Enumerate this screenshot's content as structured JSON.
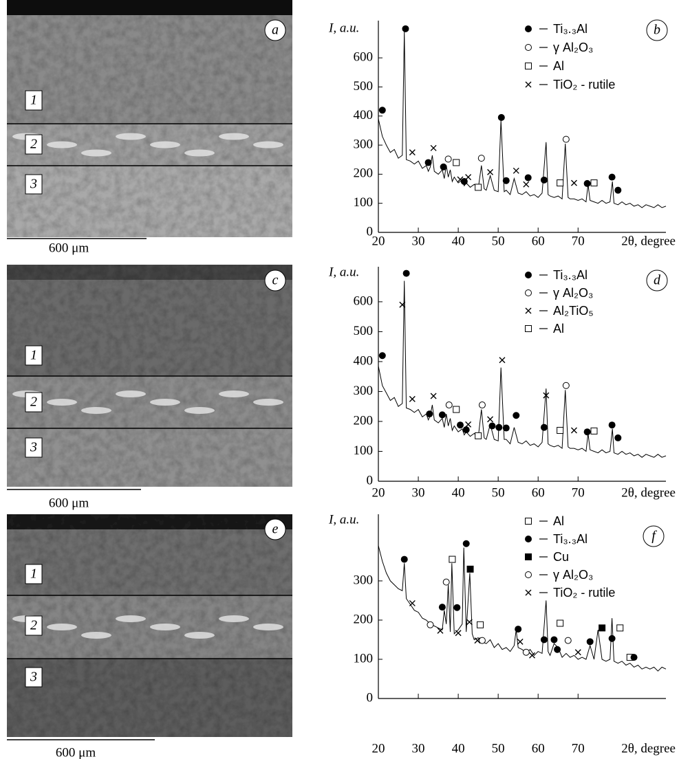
{
  "micrographs": [
    {
      "panel": "a",
      "layers": [
        "1",
        "2",
        "3"
      ],
      "scale": "600 μm"
    },
    {
      "panel": "c",
      "layers": [
        "1",
        "2",
        "3"
      ],
      "scale": "600 μm"
    },
    {
      "panel": "e",
      "layers": [
        "1",
        "2",
        "3"
      ],
      "scale": "600 μm"
    }
  ],
  "chart_data": [
    {
      "type": "line",
      "panel": "b",
      "y_label": "I, a.u.",
      "x_label": "2θ, degree",
      "color": "#000000",
      "xlim": [
        20,
        92
      ],
      "xticks": [
        20,
        30,
        40,
        50,
        60,
        70
      ],
      "ylim": [
        0,
        728
      ],
      "yticks": [
        0,
        100,
        200,
        300,
        400,
        500,
        600
      ],
      "x": [
        20,
        21,
        22,
        23,
        24,
        25,
        26,
        26.5,
        27,
        28,
        29,
        30,
        31,
        32,
        32.5,
        33,
        33.5,
        34,
        35,
        36,
        36.5,
        37,
        37.5,
        38,
        38.5,
        39,
        40,
        41,
        41.5,
        42,
        43,
        44,
        45,
        45.8,
        46.5,
        47,
        48,
        49,
        50,
        50.7,
        51.5,
        52,
        53,
        54,
        55,
        56,
        57,
        58,
        59,
        60,
        61,
        62,
        62.5,
        63,
        64,
        65,
        66,
        66.8,
        67.5,
        68,
        69,
        70,
        71,
        72,
        72.5,
        73,
        74,
        75,
        76,
        77,
        78,
        78.6,
        79,
        80,
        81,
        82,
        83,
        84,
        85,
        86,
        87,
        88,
        89,
        90,
        91,
        92
      ],
      "values": [
        390,
        330,
        300,
        275,
        285,
        255,
        265,
        690,
        250,
        245,
        235,
        245,
        220,
        230,
        210,
        225,
        265,
        210,
        200,
        215,
        185,
        230,
        190,
        215,
        175,
        190,
        170,
        180,
        160,
        170,
        155,
        165,
        150,
        230,
        150,
        145,
        195,
        145,
        140,
        385,
        140,
        145,
        130,
        185,
        135,
        130,
        140,
        125,
        130,
        120,
        135,
        310,
        130,
        125,
        120,
        125,
        115,
        305,
        120,
        115,
        115,
        110,
        115,
        105,
        165,
        110,
        105,
        100,
        110,
        100,
        105,
        175,
        100,
        95,
        105,
        95,
        100,
        90,
        95,
        85,
        95,
        90,
        85,
        95,
        85,
        90
      ],
      "markers": [
        {
          "name": "Ti₃.₃Al",
          "marker": "filled-circle",
          "x": [
            21,
            26.8,
            32.5,
            36.3,
            41.5,
            50.8,
            52,
            57.5,
            61.5,
            72.3,
            78.5,
            80
          ],
          "values": [
            420,
            700,
            240,
            225,
            175,
            395,
            178,
            188,
            180,
            168,
            190,
            145
          ]
        },
        {
          "name": "γ Al₂O₃",
          "marker": "open-circle",
          "x": [
            37.5,
            45.8,
            67
          ],
          "values": [
            252,
            255,
            320
          ]
        },
        {
          "name": "Al",
          "marker": "open-square",
          "x": [
            39.5,
            45,
            65.5,
            74
          ],
          "values": [
            240,
            155,
            170,
            170
          ]
        },
        {
          "name": "TiO₂ - rutile",
          "marker": "cross",
          "x": [
            28.5,
            33.8,
            40.5,
            42.5,
            48,
            54.5,
            57,
            69
          ],
          "values": [
            275,
            290,
            182,
            190,
            207,
            212,
            165,
            170
          ]
        }
      ]
    },
    {
      "type": "line",
      "panel": "d",
      "y_label": "I, a.u.",
      "x_label": "2θ, degree",
      "color": "#000000",
      "xlim": [
        20,
        92
      ],
      "xticks": [
        20,
        30,
        40,
        50,
        60,
        70
      ],
      "ylim": [
        0,
        717
      ],
      "yticks": [
        0,
        100,
        200,
        300,
        400,
        500,
        600
      ],
      "x": [
        20,
        21,
        22,
        23,
        24,
        25,
        26,
        26.5,
        27,
        28,
        29,
        30,
        31,
        32,
        32.5,
        33,
        33.5,
        34,
        35,
        36,
        36.5,
        37,
        37.5,
        38,
        38.5,
        39,
        40,
        41,
        41.5,
        42,
        43,
        44,
        45,
        45.8,
        46.5,
        47,
        48,
        49,
        50,
        50.7,
        51.5,
        52,
        53,
        54,
        55,
        56,
        57,
        58,
        59,
        60,
        61,
        62,
        62.5,
        63,
        64,
        65,
        66,
        66.8,
        67.5,
        68,
        69,
        70,
        71,
        72,
        72.5,
        73,
        74,
        75,
        76,
        77,
        78,
        78.6,
        79,
        80,
        81,
        82,
        83,
        84,
        85,
        86,
        87,
        88,
        89,
        90,
        91,
        92
      ],
      "values": [
        385,
        320,
        295,
        270,
        280,
        250,
        260,
        670,
        245,
        240,
        230,
        240,
        215,
        225,
        205,
        220,
        255,
        205,
        195,
        210,
        180,
        225,
        185,
        210,
        170,
        185,
        165,
        175,
        155,
        165,
        150,
        160,
        145,
        240,
        145,
        140,
        190,
        140,
        135,
        380,
        140,
        140,
        125,
        180,
        130,
        125,
        135,
        120,
        125,
        115,
        130,
        310,
        125,
        120,
        115,
        120,
        110,
        305,
        115,
        110,
        110,
        105,
        110,
        100,
        160,
        105,
        100,
        95,
        105,
        95,
        100,
        175,
        95,
        90,
        100,
        90,
        95,
        85,
        90,
        80,
        90,
        85,
        80,
        90,
        80,
        85
      ],
      "markers": [
        {
          "name": "Ti₃.₃Al",
          "marker": "filled-circle",
          "x": [
            21,
            27,
            32.8,
            36,
            40.5,
            42,
            48.5,
            50.2,
            52,
            54.5,
            61.5,
            72.3,
            78.5,
            80
          ],
          "values": [
            420,
            695,
            225,
            222,
            188,
            172,
            185,
            180,
            178,
            220,
            180,
            165,
            188,
            145
          ]
        },
        {
          "name": "γ Al₂O₃",
          "marker": "open-circle",
          "x": [
            37.7,
            46,
            67
          ],
          "values": [
            255,
            255,
            320
          ]
        },
        {
          "name": "Al₂TiO₅",
          "marker": "cross",
          "x": [
            26,
            28.5,
            33.8,
            42.5,
            48,
            51,
            62,
            69
          ],
          "values": [
            590,
            275,
            285,
            190,
            207,
            405,
            287,
            170
          ]
        },
        {
          "name": "Al",
          "marker": "open-square",
          "x": [
            39.5,
            45,
            65.5,
            74
          ],
          "values": [
            240,
            152,
            170,
            168
          ]
        }
      ]
    },
    {
      "type": "line",
      "panel": "f",
      "y_label": "I, a.u.",
      "x_label": "2θ, degree",
      "color": "#000000",
      "xlim": [
        20,
        92
      ],
      "xticks": [
        20,
        30,
        40,
        50,
        60,
        70
      ],
      "ylim": [
        0,
        470
      ],
      "yticks": [
        0,
        100,
        200,
        300
      ],
      "x": [
        20,
        21,
        22,
        23,
        24,
        25,
        26,
        26.5,
        27,
        28,
        29,
        30,
        31,
        32,
        33,
        34,
        35,
        36,
        36.5,
        37,
        37.5,
        38,
        38.4,
        39,
        40,
        41,
        41.4,
        42,
        42.9,
        43.5,
        44,
        45,
        46,
        47,
        48,
        49,
        50,
        51,
        52,
        53,
        54,
        54.5,
        55,
        56,
        57,
        58,
        59,
        60,
        61,
        62,
        62.5,
        63,
        64,
        65,
        66,
        67,
        68,
        69,
        70,
        71,
        72,
        73,
        74,
        75,
        76,
        77,
        78,
        78.5,
        79,
        80,
        81,
        82,
        83,
        84,
        85,
        86,
        87,
        88,
        89,
        90,
        91,
        92
      ],
      "values": [
        390,
        350,
        320,
        300,
        290,
        280,
        275,
        345,
        255,
        240,
        225,
        220,
        205,
        200,
        190,
        185,
        180,
        175,
        225,
        190,
        290,
        170,
        345,
        165,
        175,
        190,
        385,
        170,
        320,
        165,
        150,
        155,
        145,
        140,
        150,
        130,
        140,
        125,
        130,
        120,
        135,
        175,
        130,
        125,
        115,
        125,
        110,
        120,
        115,
        250,
        120,
        110,
        140,
        130,
        105,
        115,
        105,
        110,
        100,
        105,
        100,
        135,
        100,
        175,
        100,
        95,
        100,
        205,
        95,
        90,
        95,
        85,
        90,
        80,
        85,
        75,
        80,
        75,
        80,
        70,
        80,
        75
      ],
      "markers": [
        {
          "name": "Al",
          "marker": "open-square",
          "x": [
            38.5,
            45.5,
            65.5,
            80.5,
            83
          ],
          "values": [
            355,
            188,
            192,
            180,
            105
          ]
        },
        {
          "name": "Ti₃.₃Al",
          "marker": "filled-circle",
          "x": [
            26.5,
            36,
            39.7,
            42,
            55,
            61.5,
            64,
            64.8,
            73,
            78.5,
            84
          ],
          "values": [
            355,
            233,
            232,
            395,
            177,
            150,
            150,
            125,
            145,
            153,
            105
          ]
        },
        {
          "name": "Cu",
          "marker": "filled-square",
          "x": [
            43,
            76
          ],
          "values": [
            330,
            180
          ]
        },
        {
          "name": "γ Al₂O₃",
          "marker": "open-circle",
          "x": [
            33,
            37,
            46,
            57,
            67.5
          ],
          "values": [
            188,
            297,
            148,
            118,
            148
          ]
        },
        {
          "name": "TiO₂ - rutile",
          "marker": "cross",
          "x": [
            28.5,
            35.5,
            40,
            42.8,
            44.8,
            55.5,
            58.5,
            70
          ],
          "values": [
            243,
            173,
            167,
            195,
            148,
            145,
            110,
            118
          ]
        }
      ]
    }
  ]
}
